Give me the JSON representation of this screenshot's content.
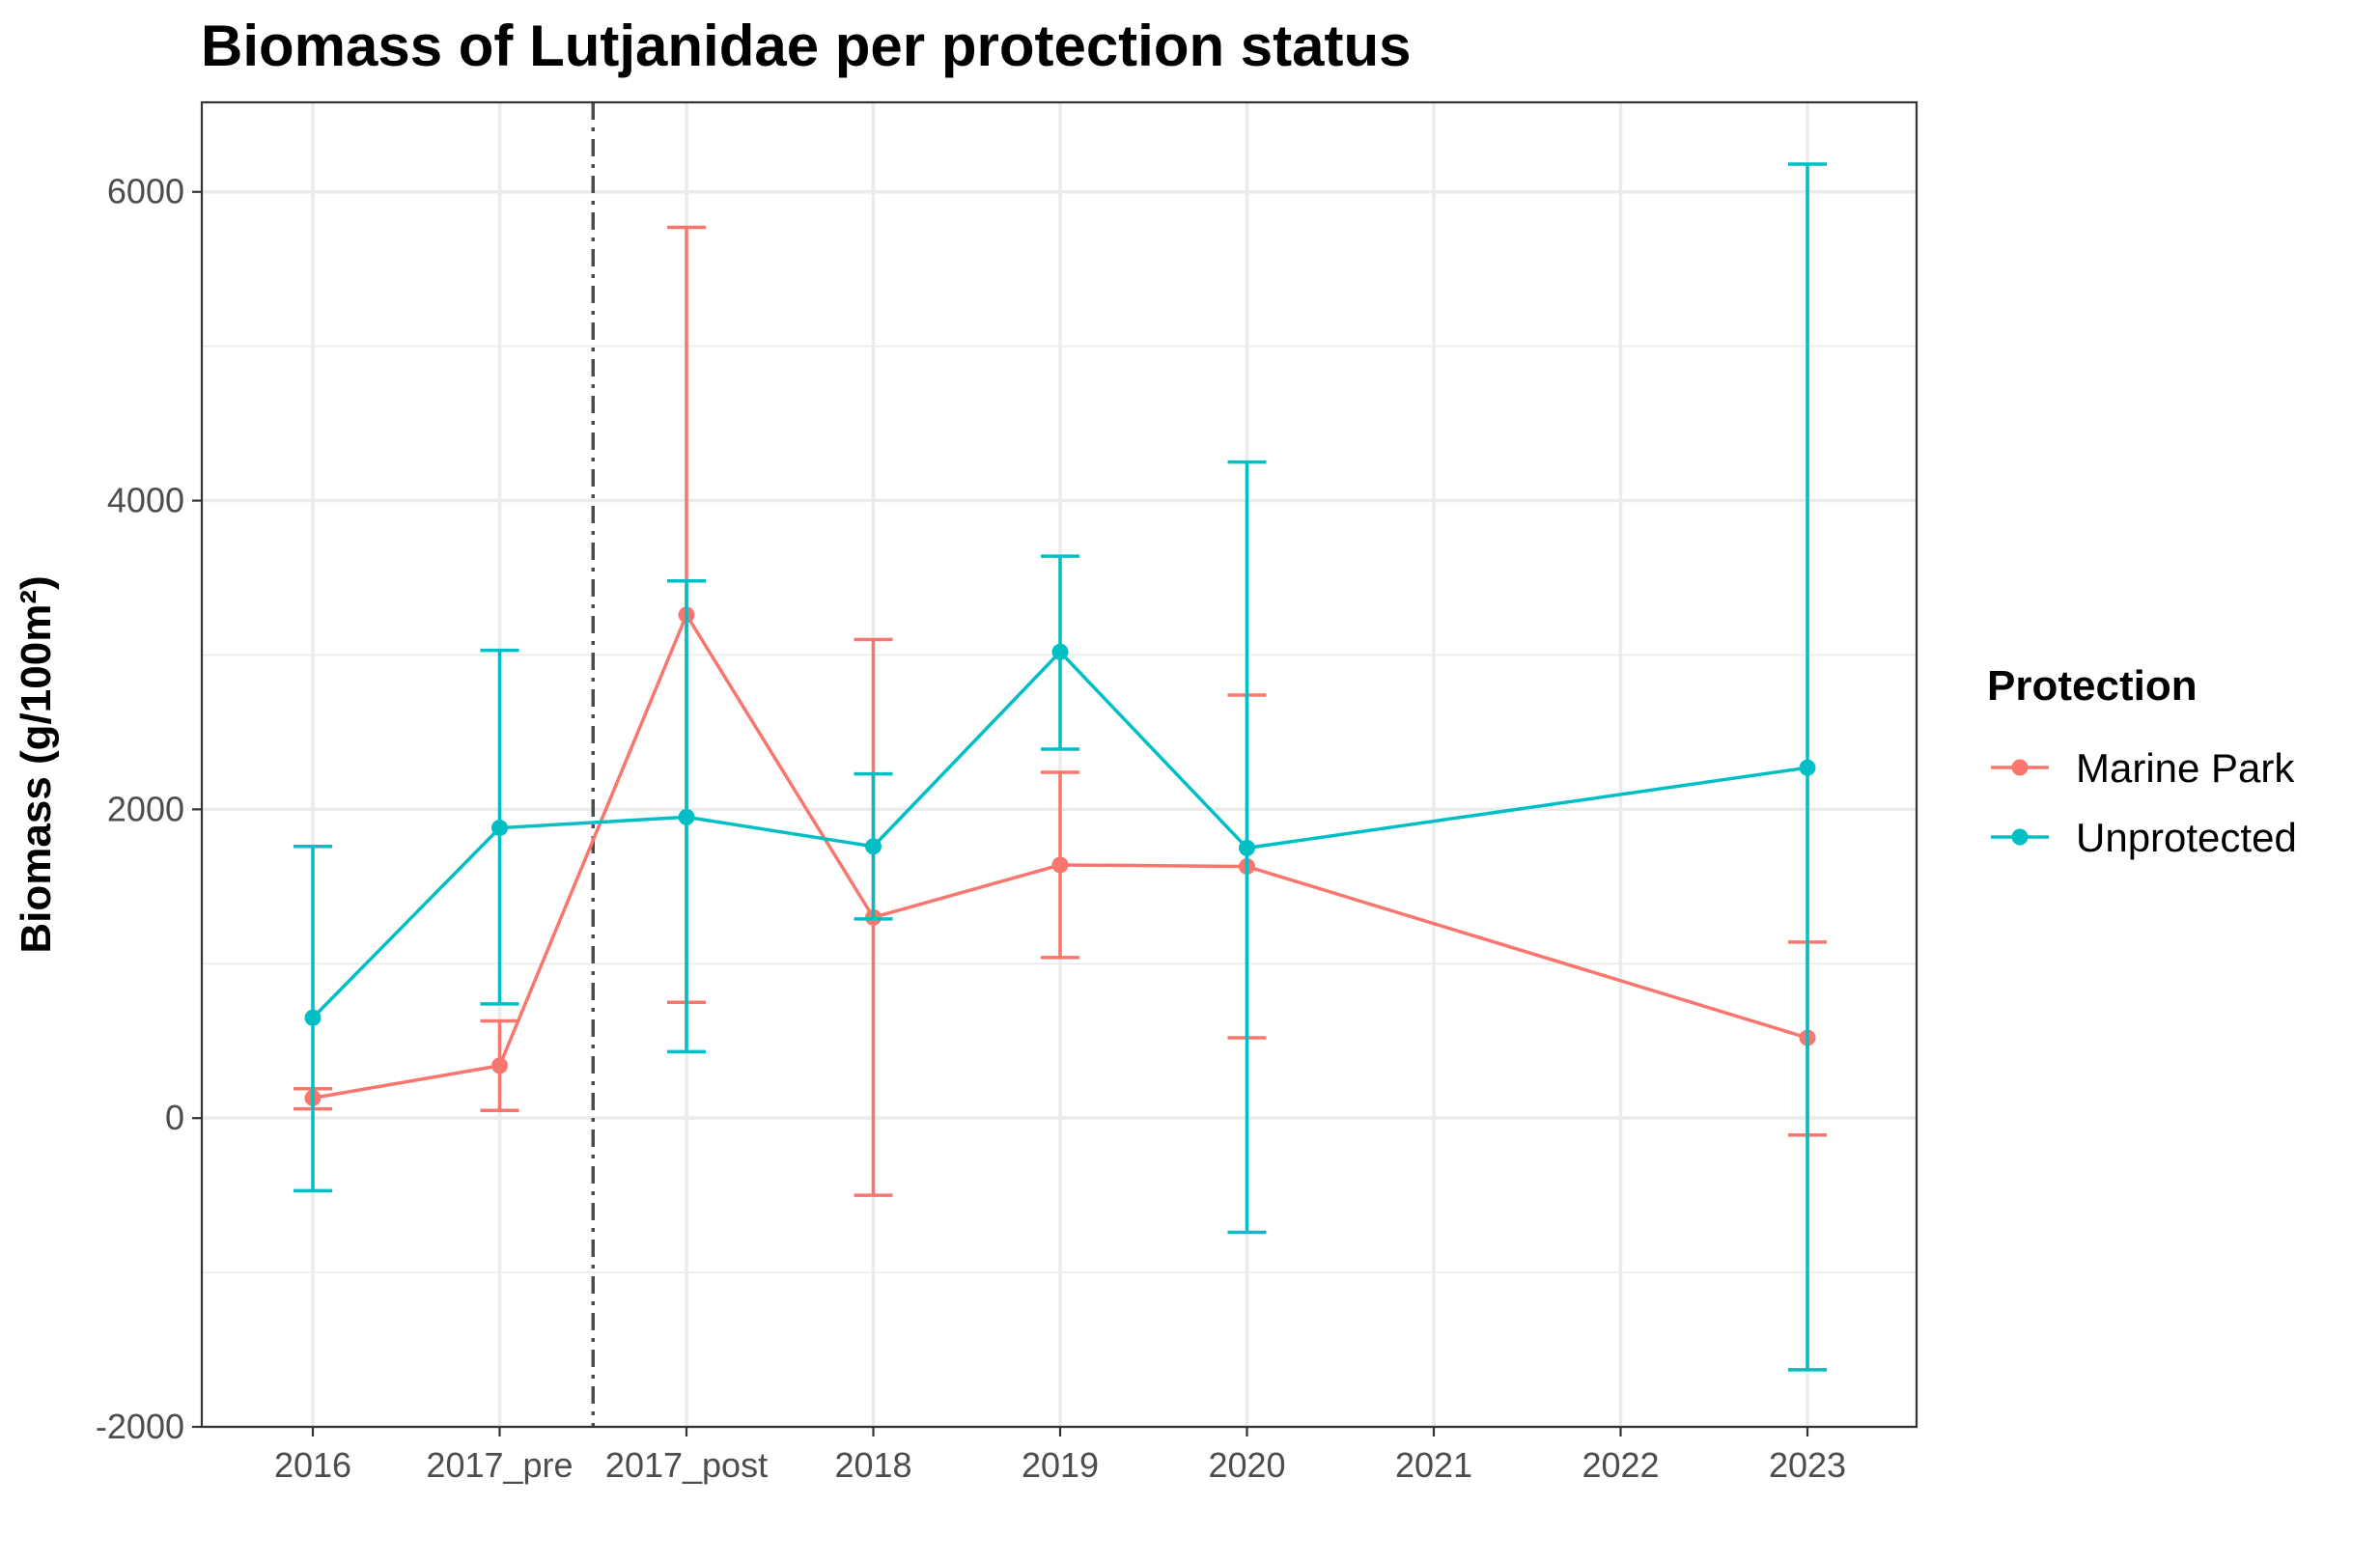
{
  "chart_data": {
    "type": "line",
    "title": "Biomass of Lutjanidae per protection status",
    "xlabel": "",
    "ylabel": "Biomass (g/100m²)",
    "categories": [
      "2016",
      "2017_pre",
      "2017_post",
      "2018",
      "2019",
      "2020",
      "2021",
      "2022",
      "2023"
    ],
    "ylim": [
      -2000,
      6580
    ],
    "yticks": [
      -2000,
      0,
      2000,
      4000,
      6000
    ],
    "grid": true,
    "reference_line": {
      "between": [
        "2017_pre",
        "2017_post"
      ],
      "style": "dotdash",
      "color": "#4d4d4d"
    },
    "legend": {
      "title": "Protection",
      "position": "right"
    },
    "series": [
      {
        "name": "Marine Park",
        "color": "#F8766D",
        "points": [
          {
            "x": "2016",
            "y": 130,
            "ymin": 60,
            "ymax": 190
          },
          {
            "x": "2017_pre",
            "y": 340,
            "ymin": 50,
            "ymax": 630
          },
          {
            "x": "2017_post",
            "y": 3260,
            "ymin": 750,
            "ymax": 5770
          },
          {
            "x": "2018",
            "y": 1300,
            "ymin": -500,
            "ymax": 3100
          },
          {
            "x": "2019",
            "y": 1640,
            "ymin": 1040,
            "ymax": 2240
          },
          {
            "x": "2020",
            "y": 1630,
            "ymin": 520,
            "ymax": 2740
          },
          {
            "x": "2023",
            "y": 520,
            "ymin": -110,
            "ymax": 1140
          }
        ]
      },
      {
        "name": "Unprotected",
        "color": "#00BFC4",
        "points": [
          {
            "x": "2016",
            "y": 650,
            "ymin": -470,
            "ymax": 1760
          },
          {
            "x": "2017_pre",
            "y": 1880,
            "ymin": 740,
            "ymax": 3030
          },
          {
            "x": "2017_post",
            "y": 1950,
            "ymin": 430,
            "ymax": 3480
          },
          {
            "x": "2018",
            "y": 1760,
            "ymin": 1290,
            "ymax": 2230
          },
          {
            "x": "2019",
            "y": 3020,
            "ymin": 2390,
            "ymax": 3640
          },
          {
            "x": "2020",
            "y": 1750,
            "ymin": -740,
            "ymax": 4250
          },
          {
            "x": "2023",
            "y": 2270,
            "ymin": -1630,
            "ymax": 6180
          }
        ]
      }
    ]
  }
}
